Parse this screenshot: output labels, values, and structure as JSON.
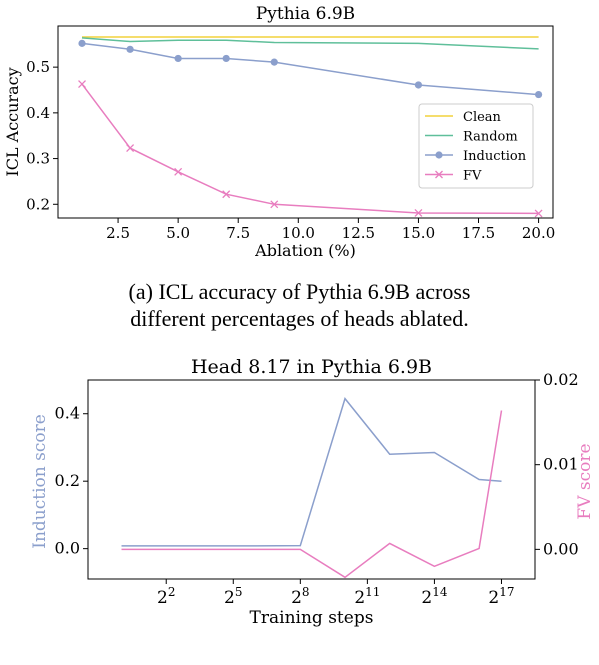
{
  "figure_a": {
    "caption_line1": "(a) ICL accuracy of Pythia 6.9B across",
    "caption_line2": "different percentages of heads ablated."
  },
  "chart_data": [
    {
      "type": "line",
      "title": "Pythia 6.9B",
      "xlabel": "Ablation (%)",
      "ylabel": "ICL Accuracy",
      "xlim": [
        0,
        20.6
      ],
      "ylim": [
        0.17,
        0.59
      ],
      "xticks": [
        2.5,
        5.0,
        7.5,
        10.0,
        12.5,
        15.0,
        17.5,
        20.0
      ],
      "xtick_labels": [
        "2.5",
        "5.0",
        "7.5",
        "10.0",
        "12.5",
        "15.0",
        "17.5",
        "20.0"
      ],
      "yticks": [
        0.2,
        0.3,
        0.4,
        0.5
      ],
      "ytick_labels": [
        "0.2",
        "0.3",
        "0.4",
        "0.5"
      ],
      "legend_position": "center-right",
      "grid": false,
      "series": [
        {
          "name": "Clean",
          "color": "#f2d23c",
          "marker": "none",
          "x": [
            1,
            20
          ],
          "y": [
            0.566,
            0.566
          ]
        },
        {
          "name": "Random",
          "color": "#5fbf9a",
          "marker": "none",
          "x": [
            1,
            3,
            5,
            7,
            9,
            15,
            20
          ],
          "y": [
            0.564,
            0.556,
            0.559,
            0.559,
            0.554,
            0.552,
            0.54
          ]
        },
        {
          "name": "Induction",
          "color": "#8b9fcc",
          "marker": "circle",
          "x": [
            1,
            3,
            5,
            7,
            9,
            15,
            20
          ],
          "y": [
            0.552,
            0.539,
            0.519,
            0.519,
            0.511,
            0.461,
            0.44
          ]
        },
        {
          "name": "FV",
          "color": "#e87dbf",
          "marker": "x",
          "x": [
            1,
            3,
            5,
            7,
            9,
            15,
            20
          ],
          "y": [
            0.463,
            0.323,
            0.271,
            0.222,
            0.2,
            0.181,
            0.18
          ]
        }
      ]
    },
    {
      "type": "line",
      "title": "Head 8.17 in Pythia 6.9B",
      "xlabel": "Training steps",
      "ylabel_left": "Induction score",
      "ylabel_right": "FV score",
      "x_scale": "log2",
      "xlim_log2": [
        -1.5,
        18.5
      ],
      "xticks_log2": [
        2,
        5,
        8,
        11,
        14,
        17
      ],
      "xtick_labels": [
        {
          "base": "2",
          "exp": "2"
        },
        {
          "base": "2",
          "exp": "5"
        },
        {
          "base": "2",
          "exp": "8"
        },
        {
          "base": "2",
          "exp": "11"
        },
        {
          "base": "2",
          "exp": "14"
        },
        {
          "base": "2",
          "exp": "17"
        }
      ],
      "ylim_left": [
        -0.09,
        0.5
      ],
      "yticks_left": [
        0.0,
        0.2,
        0.4
      ],
      "ytick_labels_left": [
        "0.0",
        "0.2",
        "0.4"
      ],
      "ylim_right": [
        -0.0035,
        0.02
      ],
      "yticks_right": [
        0.0,
        0.01,
        0.02
      ],
      "ytick_labels_right": [
        "0.00",
        "0.01",
        "0.02"
      ],
      "grid": false,
      "series": [
        {
          "name": "Induction score",
          "axis": "left",
          "color": "#8b9fcc",
          "x_log2": [
            0,
            2,
            4,
            6,
            8,
            10,
            12,
            14,
            16,
            17
          ],
          "y": [
            0.008,
            0.008,
            0.008,
            0.008,
            0.009,
            0.445,
            0.28,
            0.285,
            0.205,
            0.2
          ]
        },
        {
          "name": "FV score",
          "axis": "right",
          "color": "#e87dbf",
          "x_log2": [
            0,
            2,
            4,
            6,
            8,
            10,
            12,
            14,
            16,
            17
          ],
          "y": [
            0.0,
            0.0,
            0.0,
            0.0,
            0.0,
            -0.0033,
            0.0007,
            -0.002,
            0.0001,
            0.0164
          ]
        }
      ]
    }
  ]
}
